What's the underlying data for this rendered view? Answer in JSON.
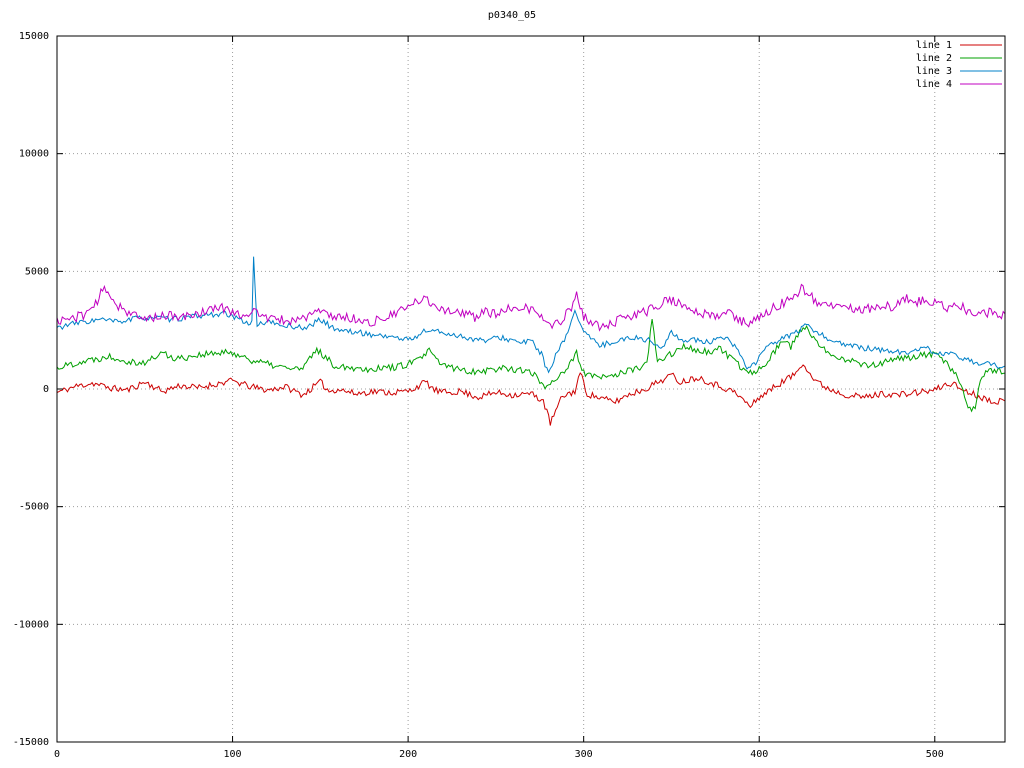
{
  "title": "p0340_05",
  "chart_data": {
    "type": "line",
    "title": "p0340_05",
    "xlabel": "",
    "ylabel": "",
    "xlim": [
      0,
      540
    ],
    "ylim": [
      -15000,
      15000
    ],
    "xticks": [
      0,
      100,
      200,
      300,
      400,
      500
    ],
    "yticks": [
      -15000,
      -10000,
      -5000,
      0,
      5000,
      10000,
      15000
    ],
    "grid": true,
    "grid_color": "#9e9e9e",
    "border_color": "#000000",
    "background": "#ffffff",
    "legend_position": "top-right",
    "series": [
      {
        "name": "line 1",
        "color": "#cc0000",
        "noise": 140,
        "seed": 11,
        "anchors": [
          [
            0,
            -150
          ],
          [
            10,
            100
          ],
          [
            20,
            250
          ],
          [
            30,
            50
          ],
          [
            40,
            -50
          ],
          [
            50,
            300
          ],
          [
            55,
            100
          ],
          [
            60,
            -100
          ],
          [
            70,
            150
          ],
          [
            80,
            50
          ],
          [
            90,
            200
          ],
          [
            100,
            350
          ],
          [
            110,
            100
          ],
          [
            120,
            -50
          ],
          [
            130,
            100
          ],
          [
            140,
            -250
          ],
          [
            150,
            300
          ],
          [
            155,
            -100
          ],
          [
            160,
            0
          ],
          [
            170,
            -200
          ],
          [
            180,
            -100
          ],
          [
            190,
            -150
          ],
          [
            200,
            -100
          ],
          [
            210,
            300
          ],
          [
            215,
            -50
          ],
          [
            220,
            -150
          ],
          [
            230,
            -100
          ],
          [
            240,
            -350
          ],
          [
            250,
            -150
          ],
          [
            260,
            -250
          ],
          [
            270,
            -200
          ],
          [
            277,
            -500
          ],
          [
            281,
            -1450
          ],
          [
            288,
            -300
          ],
          [
            295,
            -100
          ],
          [
            298,
            700
          ],
          [
            302,
            -200
          ],
          [
            310,
            -400
          ],
          [
            318,
            -550
          ],
          [
            325,
            -250
          ],
          [
            335,
            0
          ],
          [
            345,
            400
          ],
          [
            350,
            600
          ],
          [
            355,
            300
          ],
          [
            365,
            500
          ],
          [
            375,
            200
          ],
          [
            385,
            -100
          ],
          [
            390,
            -400
          ],
          [
            395,
            -750
          ],
          [
            400,
            -350
          ],
          [
            405,
            -100
          ],
          [
            415,
            400
          ],
          [
            420,
            600
          ],
          [
            425,
            1150
          ],
          [
            430,
            500
          ],
          [
            435,
            200
          ],
          [
            440,
            0
          ],
          [
            450,
            -250
          ],
          [
            460,
            -350
          ],
          [
            470,
            -200
          ],
          [
            480,
            -250
          ],
          [
            490,
            -150
          ],
          [
            500,
            -50
          ],
          [
            505,
            150
          ],
          [
            510,
            250
          ],
          [
            515,
            0
          ],
          [
            520,
            -150
          ],
          [
            525,
            -300
          ],
          [
            530,
            -450
          ],
          [
            540,
            -550
          ]
        ]
      },
      {
        "name": "line 2",
        "color": "#00a000",
        "noise": 150,
        "seed": 22,
        "anchors": [
          [
            0,
            900
          ],
          [
            10,
            1100
          ],
          [
            20,
            1250
          ],
          [
            30,
            1400
          ],
          [
            35,
            1300
          ],
          [
            40,
            1200
          ],
          [
            50,
            1100
          ],
          [
            60,
            1550
          ],
          [
            65,
            1350
          ],
          [
            70,
            1300
          ],
          [
            80,
            1450
          ],
          [
            90,
            1500
          ],
          [
            100,
            1550
          ],
          [
            105,
            1400
          ],
          [
            110,
            1250
          ],
          [
            120,
            1050
          ],
          [
            130,
            900
          ],
          [
            140,
            850
          ],
          [
            148,
            1700
          ],
          [
            152,
            1400
          ],
          [
            158,
            1000
          ],
          [
            165,
            950
          ],
          [
            175,
            850
          ],
          [
            185,
            900
          ],
          [
            195,
            950
          ],
          [
            205,
            1200
          ],
          [
            212,
            1600
          ],
          [
            218,
            1100
          ],
          [
            225,
            900
          ],
          [
            235,
            750
          ],
          [
            245,
            800
          ],
          [
            255,
            900
          ],
          [
            265,
            800
          ],
          [
            272,
            600
          ],
          [
            278,
            100
          ],
          [
            285,
            500
          ],
          [
            292,
            1000
          ],
          [
            296,
            1500
          ],
          [
            300,
            700
          ],
          [
            308,
            450
          ],
          [
            315,
            550
          ],
          [
            322,
            700
          ],
          [
            330,
            850
          ],
          [
            336,
            1100
          ],
          [
            339,
            2950
          ],
          [
            342,
            1100
          ],
          [
            347,
            1400
          ],
          [
            352,
            1600
          ],
          [
            358,
            1800
          ],
          [
            365,
            1650
          ],
          [
            372,
            1550
          ],
          [
            378,
            1700
          ],
          [
            385,
            1200
          ],
          [
            390,
            900
          ],
          [
            395,
            700
          ],
          [
            400,
            850
          ],
          [
            407,
            1400
          ],
          [
            413,
            2100
          ],
          [
            418,
            1800
          ],
          [
            422,
            2300
          ],
          [
            426,
            2650
          ],
          [
            430,
            2200
          ],
          [
            436,
            1700
          ],
          [
            442,
            1500
          ],
          [
            448,
            1300
          ],
          [
            455,
            1150
          ],
          [
            462,
            1000
          ],
          [
            470,
            1100
          ],
          [
            478,
            1250
          ],
          [
            485,
            1350
          ],
          [
            492,
            1400
          ],
          [
            500,
            1500
          ],
          [
            506,
            1100
          ],
          [
            511,
            700
          ],
          [
            515,
            300
          ],
          [
            519,
            -950
          ],
          [
            523,
            -700
          ],
          [
            526,
            400
          ],
          [
            530,
            800
          ],
          [
            537,
            750
          ],
          [
            540,
            700
          ]
        ]
      },
      {
        "name": "line 3",
        "color": "#0080c8",
        "noise": 120,
        "seed": 33,
        "anchors": [
          [
            0,
            2600
          ],
          [
            8,
            2750
          ],
          [
            15,
            2850
          ],
          [
            25,
            2950
          ],
          [
            35,
            2850
          ],
          [
            45,
            3000
          ],
          [
            55,
            3050
          ],
          [
            65,
            2950
          ],
          [
            75,
            3050
          ],
          [
            85,
            3150
          ],
          [
            95,
            3200
          ],
          [
            102,
            3000
          ],
          [
            108,
            2850
          ],
          [
            111,
            2800
          ],
          [
            112,
            5500
          ],
          [
            114,
            2750
          ],
          [
            120,
            2850
          ],
          [
            128,
            2700
          ],
          [
            135,
            2650
          ],
          [
            142,
            2600
          ],
          [
            150,
            2950
          ],
          [
            157,
            2600
          ],
          [
            165,
            2450
          ],
          [
            172,
            2400
          ],
          [
            180,
            2300
          ],
          [
            188,
            2250
          ],
          [
            195,
            2150
          ],
          [
            202,
            2100
          ],
          [
            210,
            2500
          ],
          [
            216,
            2450
          ],
          [
            222,
            2350
          ],
          [
            230,
            2250
          ],
          [
            238,
            2100
          ],
          [
            245,
            2050
          ],
          [
            252,
            2200
          ],
          [
            258,
            2100
          ],
          [
            264,
            1950
          ],
          [
            270,
            2050
          ],
          [
            276,
            1500
          ],
          [
            280,
            600
          ],
          [
            284,
            1400
          ],
          [
            290,
            2200
          ],
          [
            295,
            3400
          ],
          [
            299,
            2600
          ],
          [
            304,
            2100
          ],
          [
            310,
            1850
          ],
          [
            316,
            2000
          ],
          [
            322,
            2100
          ],
          [
            330,
            2200
          ],
          [
            338,
            2050
          ],
          [
            344,
            1700
          ],
          [
            350,
            2400
          ],
          [
            355,
            2050
          ],
          [
            362,
            2150
          ],
          [
            368,
            1950
          ],
          [
            375,
            2050
          ],
          [
            382,
            2150
          ],
          [
            388,
            1600
          ],
          [
            393,
            900
          ],
          [
            398,
            1100
          ],
          [
            403,
            1700
          ],
          [
            410,
            2000
          ],
          [
            416,
            2250
          ],
          [
            422,
            2450
          ],
          [
            427,
            2700
          ],
          [
            432,
            2450
          ],
          [
            438,
            2200
          ],
          [
            444,
            2000
          ],
          [
            450,
            1850
          ],
          [
            458,
            1750
          ],
          [
            466,
            1700
          ],
          [
            474,
            1600
          ],
          [
            482,
            1550
          ],
          [
            490,
            1650
          ],
          [
            496,
            1700
          ],
          [
            502,
            1500
          ],
          [
            510,
            1450
          ],
          [
            518,
            1250
          ],
          [
            526,
            1100
          ],
          [
            534,
            1000
          ],
          [
            540,
            900
          ]
        ]
      },
      {
        "name": "line 4",
        "color": "#c000c0",
        "noise": 200,
        "seed": 44,
        "anchors": [
          [
            0,
            2900
          ],
          [
            8,
            3000
          ],
          [
            15,
            3150
          ],
          [
            22,
            3600
          ],
          [
            26,
            4200
          ],
          [
            30,
            4050
          ],
          [
            34,
            3600
          ],
          [
            40,
            3300
          ],
          [
            48,
            2950
          ],
          [
            55,
            3050
          ],
          [
            62,
            3150
          ],
          [
            70,
            3000
          ],
          [
            78,
            3200
          ],
          [
            85,
            3300
          ],
          [
            92,
            3500
          ],
          [
            98,
            3350
          ],
          [
            105,
            3150
          ],
          [
            112,
            3300
          ],
          [
            118,
            3050
          ],
          [
            125,
            2950
          ],
          [
            132,
            2900
          ],
          [
            140,
            3000
          ],
          [
            148,
            3300
          ],
          [
            155,
            3150
          ],
          [
            162,
            3050
          ],
          [
            170,
            3000
          ],
          [
            176,
            2800
          ],
          [
            182,
            2900
          ],
          [
            190,
            3100
          ],
          [
            198,
            3400
          ],
          [
            205,
            3700
          ],
          [
            210,
            3850
          ],
          [
            215,
            3550
          ],
          [
            222,
            3350
          ],
          [
            230,
            3250
          ],
          [
            238,
            3050
          ],
          [
            244,
            3300
          ],
          [
            250,
            3150
          ],
          [
            256,
            3400
          ],
          [
            262,
            3250
          ],
          [
            267,
            3500
          ],
          [
            272,
            3300
          ],
          [
            278,
            2900
          ],
          [
            283,
            2650
          ],
          [
            288,
            3000
          ],
          [
            293,
            3500
          ],
          [
            296,
            3950
          ],
          [
            300,
            3100
          ],
          [
            306,
            2750
          ],
          [
            312,
            2600
          ],
          [
            318,
            2850
          ],
          [
            324,
            3050
          ],
          [
            330,
            3150
          ],
          [
            336,
            3300
          ],
          [
            342,
            3550
          ],
          [
            348,
            3800
          ],
          [
            353,
            3700
          ],
          [
            359,
            3400
          ],
          [
            365,
            3250
          ],
          [
            371,
            3150
          ],
          [
            377,
            3050
          ],
          [
            383,
            3300
          ],
          [
            389,
            2900
          ],
          [
            395,
            2750
          ],
          [
            401,
            3100
          ],
          [
            407,
            3400
          ],
          [
            413,
            3650
          ],
          [
            419,
            3900
          ],
          [
            424,
            4250
          ],
          [
            429,
            3950
          ],
          [
            434,
            3650
          ],
          [
            440,
            3450
          ],
          [
            446,
            3600
          ],
          [
            452,
            3500
          ],
          [
            458,
            3350
          ],
          [
            464,
            3450
          ],
          [
            470,
            3550
          ],
          [
            477,
            3500
          ],
          [
            484,
            3850
          ],
          [
            490,
            3700
          ],
          [
            496,
            3800
          ],
          [
            502,
            3600
          ],
          [
            508,
            3450
          ],
          [
            514,
            3550
          ],
          [
            520,
            3250
          ],
          [
            526,
            3150
          ],
          [
            532,
            3300
          ],
          [
            538,
            3150
          ],
          [
            540,
            3050
          ]
        ]
      }
    ]
  }
}
